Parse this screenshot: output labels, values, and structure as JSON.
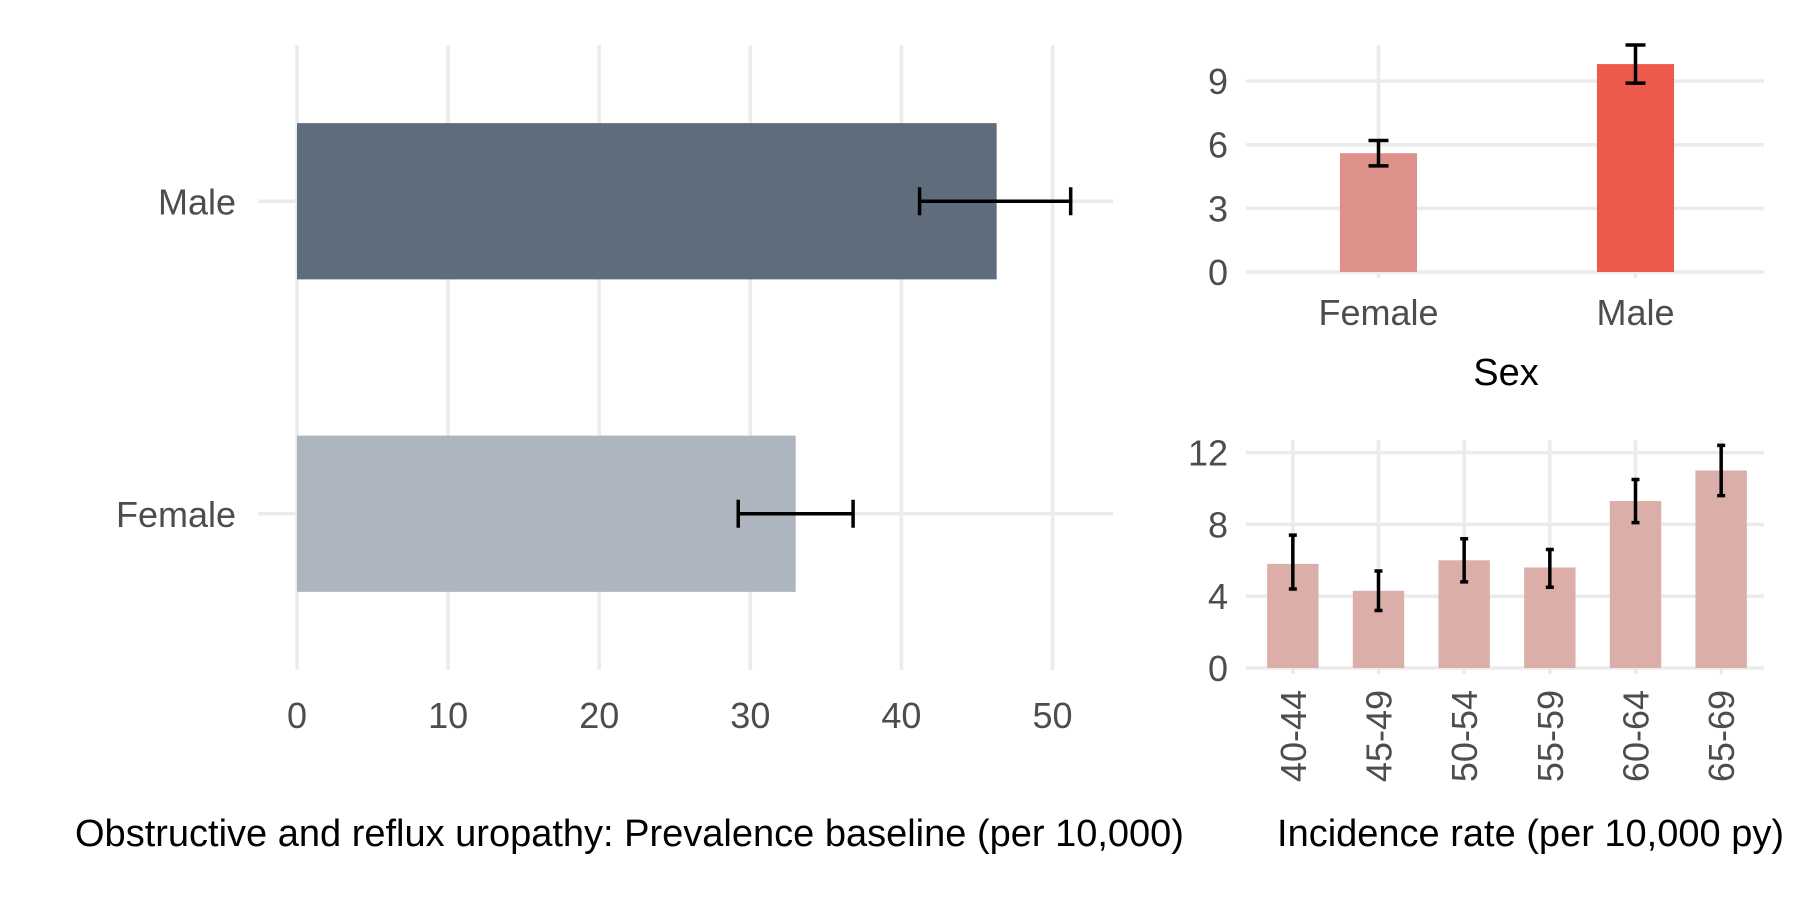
{
  "chart_data": [
    {
      "id": "prevalence",
      "type": "bar",
      "orientation": "horizontal",
      "categories": [
        "Female",
        "Male"
      ],
      "values": [
        33.0,
        46.3
      ],
      "error_low": [
        29.2,
        41.2
      ],
      "error_high": [
        36.8,
        51.2
      ],
      "colors": [
        "#adb5bf",
        "#5e6c7c"
      ],
      "xlabel": "Obstructive and reflux uropathy: Prevalence baseline (per 10,000)",
      "ylabel": "",
      "xlim": [
        0,
        54
      ],
      "xticks": [
        0,
        10,
        20,
        30,
        40,
        50
      ],
      "grid": true,
      "legend": "none"
    },
    {
      "id": "incidence-sex",
      "type": "bar",
      "categories": [
        "Female",
        "Male"
      ],
      "values": [
        5.6,
        9.8
      ],
      "error_low": [
        5.0,
        8.9
      ],
      "error_high": [
        6.2,
        10.7
      ],
      "colors": [
        "#de908a",
        "#ec5a4c"
      ],
      "xlabel": "Sex",
      "ylabel": "",
      "ylim": [
        0,
        10.7
      ],
      "yticks": [
        0,
        3,
        6,
        9
      ],
      "grid": true,
      "legend": "none"
    },
    {
      "id": "incidence-age",
      "type": "bar",
      "categories": [
        "40-44",
        "45-49",
        "50-54",
        "55-59",
        "60-64",
        "65-69"
      ],
      "values": [
        5.8,
        4.3,
        6.0,
        5.6,
        9.3,
        11.0
      ],
      "error_low": [
        4.4,
        3.2,
        4.8,
        4.5,
        8.1,
        9.6
      ],
      "error_high": [
        7.4,
        5.4,
        7.2,
        6.6,
        10.5,
        12.4
      ],
      "colors": [
        "#dcaea9"
      ],
      "xlabel": "Incidence rate (per 10,000 py)",
      "ylabel": "",
      "ylim": [
        0,
        12.7
      ],
      "yticks": [
        0,
        4,
        8,
        12
      ],
      "grid": true,
      "legend": "none"
    }
  ]
}
